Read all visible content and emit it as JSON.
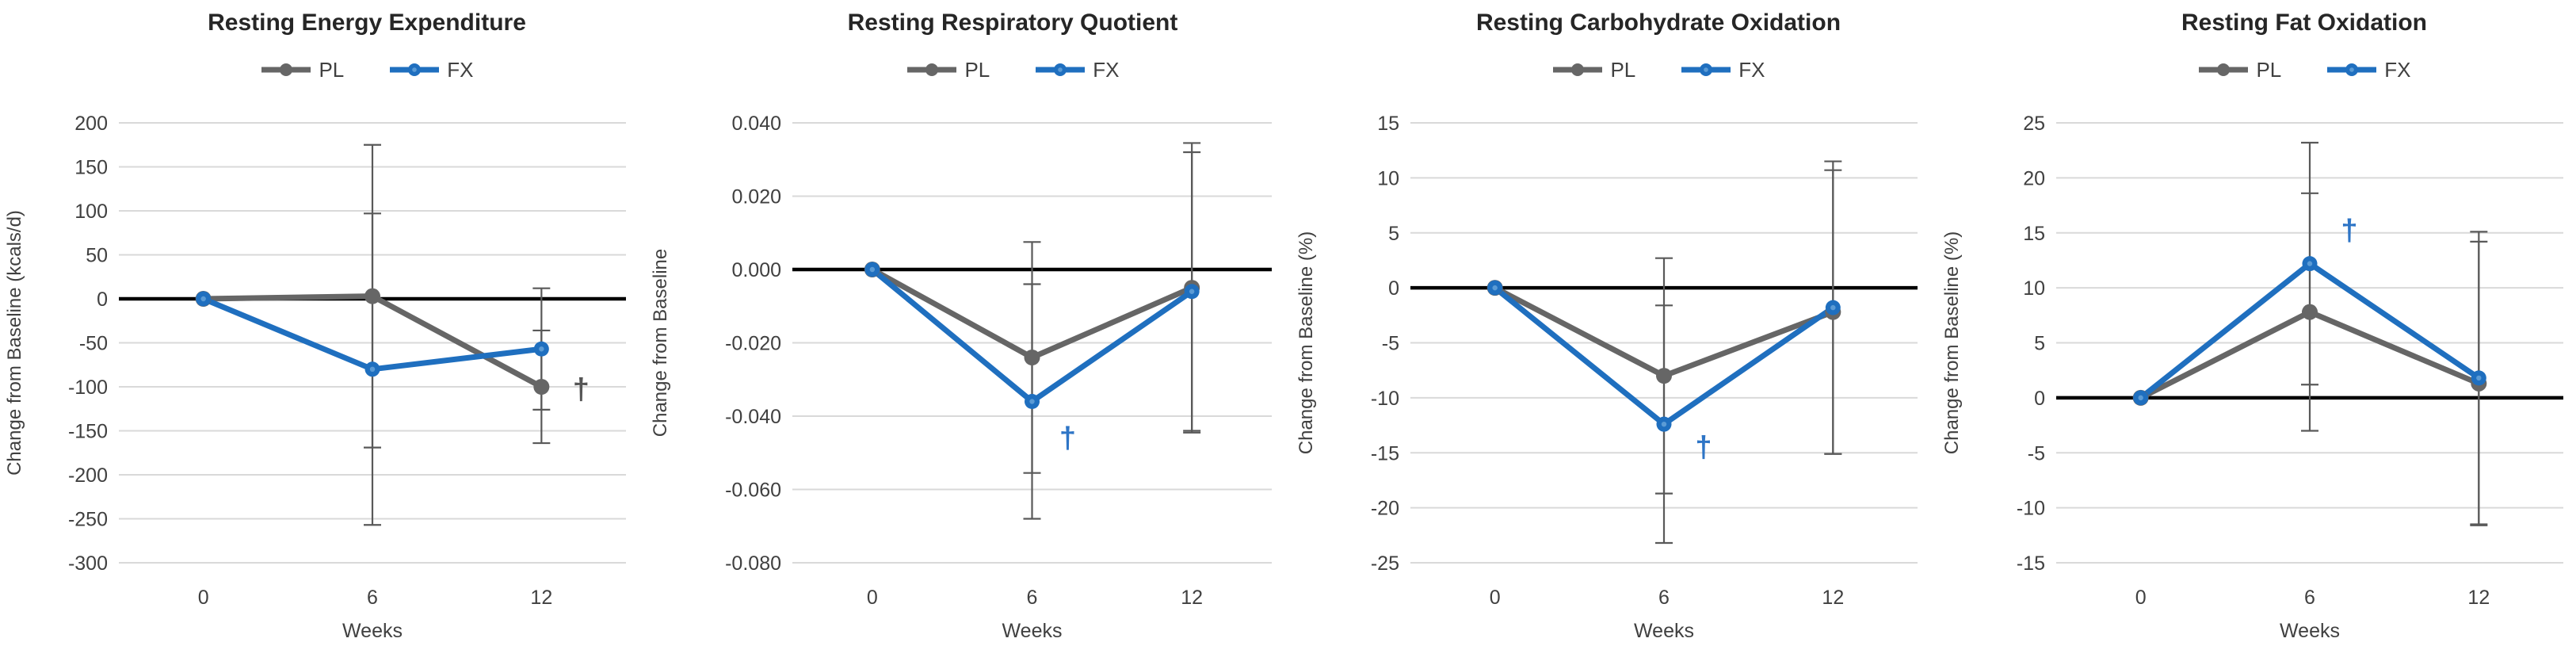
{
  "colors": {
    "pl_series": "#666666",
    "fx_series": "#1F6FBF",
    "fx_marker_dot": "#5B9BD5",
    "error_bar": "#595959",
    "gridline": "#D9D9D9",
    "zero_line": "#000000",
    "title_text": "#262626",
    "axis_text": "#404040",
    "pl_dagger": "#555555",
    "fx_dagger": "#2E75C6"
  },
  "chart_data": [
    {
      "type": "line",
      "title": "Resting Energy Expenditure",
      "xlabel": "Weeks",
      "ylabel": "Change from Baseline (kcals/d)",
      "categories": [
        0,
        6,
        12
      ],
      "ylim": [
        -300,
        200
      ],
      "ytick_step": 50,
      "decimals": 0,
      "legend_position": "top",
      "grid": true,
      "series": [
        {
          "name": "PL",
          "values": [
            0,
            3,
            -100
          ],
          "error": [
            0,
            172,
            64
          ]
        },
        {
          "name": "FX",
          "values": [
            0,
            -80,
            -57
          ],
          "error": [
            0,
            177,
            69
          ]
        }
      ],
      "annotations": [
        {
          "text": "†",
          "series": "PL",
          "category_index": 2,
          "value": -103,
          "dx": 50
        }
      ]
    },
    {
      "type": "line",
      "title": "Resting Respiratory Quotient",
      "xlabel": "Weeks",
      "ylabel": "Change from Baseline",
      "categories": [
        0,
        6,
        12
      ],
      "ylim": [
        -0.08,
        0.04
      ],
      "ytick_step": 0.02,
      "decimals": 3,
      "legend_position": "top",
      "grid": true,
      "series": [
        {
          "name": "PL",
          "values": [
            0,
            -0.024,
            -0.005
          ],
          "error": [
            0,
            0.0315,
            0.0395
          ]
        },
        {
          "name": "FX",
          "values": [
            0,
            -0.036,
            -0.006
          ],
          "error": [
            0,
            0.032,
            0.038
          ]
        }
      ],
      "annotations": [
        {
          "text": "†",
          "series": "FX",
          "category_index": 1,
          "value": -0.046,
          "dx": 45
        }
      ]
    },
    {
      "type": "line",
      "title": "Resting Carbohydrate Oxidation",
      "xlabel": "Weeks",
      "ylabel": "Change from Baseline (%)",
      "categories": [
        0,
        6,
        12
      ],
      "ylim": [
        -25,
        15
      ],
      "ytick_step": 5,
      "decimals": 0,
      "legend_position": "top",
      "grid": true,
      "series": [
        {
          "name": "PL",
          "values": [
            0,
            -8,
            -2.2
          ],
          "error": [
            0,
            10.7,
            12.9
          ]
        },
        {
          "name": "FX",
          "values": [
            0,
            -12.4,
            -1.8
          ],
          "error": [
            0,
            10.8,
            13.3
          ]
        }
      ],
      "annotations": [
        {
          "text": "†",
          "series": "FX",
          "category_index": 1,
          "value": -14.5,
          "dx": 50
        }
      ]
    },
    {
      "type": "line",
      "title": "Resting Fat Oxidation",
      "xlabel": "Weeks",
      "ylabel": "Change from Baseline (%)",
      "categories": [
        0,
        6,
        12
      ],
      "ylim": [
        -15,
        25
      ],
      "ytick_step": 5,
      "decimals": 0,
      "legend_position": "top",
      "grid": true,
      "series": [
        {
          "name": "PL",
          "values": [
            0,
            7.8,
            1.3
          ],
          "error": [
            0,
            10.8,
            12.9
          ]
        },
        {
          "name": "FX",
          "values": [
            0,
            12.2,
            1.8
          ],
          "error": [
            0,
            11,
            13.3
          ]
        }
      ],
      "annotations": [
        {
          "text": "†",
          "series": "FX",
          "category_index": 1,
          "value": 15.2,
          "dx": 50
        }
      ]
    }
  ]
}
